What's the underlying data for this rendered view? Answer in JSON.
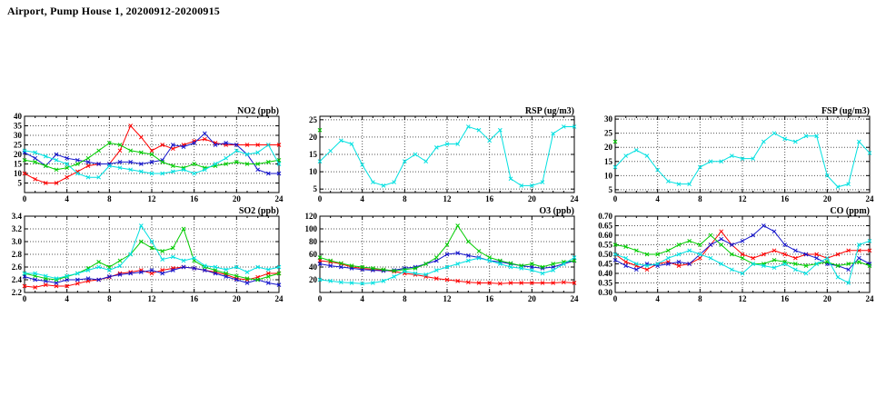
{
  "page_title": "Airport, Pump House 1, 20200912-20200915",
  "colors": {
    "red": "#ff0000",
    "blue": "#1414cc",
    "green": "#00cc00",
    "cyan": "#00e0e0"
  },
  "chart_data": [
    {
      "type": "line",
      "title": "NO2 (ppb)",
      "x_range": [
        0,
        24
      ],
      "x_ticks": [
        0,
        4,
        8,
        12,
        16,
        20,
        24
      ],
      "x_tick_labels": [
        "0",
        "4",
        "8",
        "12",
        "16",
        "20",
        "24"
      ],
      "y_range": [
        0,
        40
      ],
      "y_ticks": [
        5,
        10,
        15,
        20,
        25,
        30,
        35,
        40
      ],
      "y_tick_labels": [
        "5",
        "10",
        "15",
        "20",
        "25",
        "30",
        "35",
        "40"
      ],
      "grid": true,
      "legend": "none",
      "x": [
        0,
        1,
        2,
        3,
        4,
        5,
        6,
        7,
        8,
        9,
        10,
        11,
        12,
        13,
        14,
        15,
        16,
        17,
        18,
        19,
        20,
        21,
        22,
        23,
        24
      ],
      "series": [
        {
          "name": "red",
          "color": "#ff0000",
          "marker": "x",
          "y": [
            10,
            7,
            5,
            5,
            8,
            11,
            14,
            15,
            15,
            22,
            35,
            29,
            22,
            25,
            23,
            25,
            27,
            28,
            26,
            25,
            25,
            25,
            25,
            25,
            25
          ]
        },
        {
          "name": "blue",
          "color": "#1414cc",
          "marker": "x",
          "y": [
            21,
            18,
            14,
            20,
            18,
            17,
            16,
            15,
            15,
            16,
            16,
            15,
            16,
            17,
            25,
            24,
            26,
            31,
            25,
            26,
            25,
            20,
            12,
            10,
            10
          ]
        },
        {
          "name": "green",
          "color": "#00cc00",
          "marker": "x",
          "y": [
            17,
            16,
            14,
            12,
            13,
            15,
            18,
            22,
            26,
            25,
            22,
            21,
            20,
            16,
            14,
            13,
            15,
            13,
            14,
            15,
            16,
            15,
            15,
            16,
            17
          ]
        },
        {
          "name": "cyan",
          "color": "#00e0e0",
          "marker": "x",
          "y": [
            22,
            21,
            19,
            17,
            15,
            10,
            8,
            8,
            14,
            13,
            12,
            11,
            10,
            10,
            11,
            12,
            10,
            12,
            15,
            18,
            22,
            20,
            21,
            25,
            15
          ]
        }
      ]
    },
    {
      "type": "line",
      "title": "RSP (ug/m3)",
      "x_range": [
        0,
        24
      ],
      "x_ticks": [
        0,
        4,
        8,
        12,
        16,
        20,
        24
      ],
      "x_tick_labels": [
        "0",
        "4",
        "8",
        "12",
        "16",
        "20",
        "24"
      ],
      "y_range": [
        4,
        26
      ],
      "y_ticks": [
        5,
        10,
        15,
        20,
        25
      ],
      "y_tick_labels": [
        "5",
        "10",
        "15",
        "20",
        "25"
      ],
      "grid": true,
      "legend": "none",
      "x": [
        0,
        1,
        2,
        3,
        4,
        5,
        6,
        7,
        8,
        9,
        10,
        11,
        12,
        13,
        14,
        15,
        16,
        17,
        18,
        19,
        20,
        21,
        22,
        23,
        24
      ],
      "series": [
        {
          "name": "green",
          "color": "#00cc00",
          "marker": "x",
          "x": [
            0
          ],
          "y": [
            22
          ]
        },
        {
          "name": "cyan",
          "color": "#00e0e0",
          "marker": "x",
          "y": [
            13,
            16,
            19,
            18,
            12,
            7,
            6,
            7,
            13,
            15,
            13,
            17,
            18,
            18,
            23,
            22,
            19,
            22,
            8,
            6,
            6,
            7,
            21,
            23,
            23
          ]
        }
      ]
    },
    {
      "type": "line",
      "title": "FSP (ug/m3)",
      "x_range": [
        0,
        24
      ],
      "x_ticks": [
        0,
        4,
        8,
        12,
        16,
        20,
        24
      ],
      "x_tick_labels": [
        "0",
        "4",
        "8",
        "12",
        "16",
        "20",
        "24"
      ],
      "y_range": [
        4,
        31
      ],
      "y_ticks": [
        5,
        10,
        15,
        20,
        25,
        30
      ],
      "y_tick_labels": [
        "5",
        "10",
        "15",
        "20",
        "25",
        "30"
      ],
      "grid": true,
      "legend": "none",
      "x": [
        0,
        1,
        2,
        3,
        4,
        5,
        6,
        7,
        8,
        9,
        10,
        11,
        12,
        13,
        14,
        15,
        16,
        17,
        18,
        19,
        20,
        21,
        22,
        23,
        24
      ],
      "series": [
        {
          "name": "green",
          "color": "#00cc00",
          "marker": "x",
          "x": [
            0
          ],
          "y": [
            22
          ]
        },
        {
          "name": "cyan",
          "color": "#00e0e0",
          "marker": "x",
          "y": [
            13,
            17,
            19,
            17,
            12,
            8,
            7,
            7,
            13,
            15,
            15,
            17,
            16,
            16,
            22,
            25,
            23,
            22,
            24,
            24,
            10,
            6,
            7,
            22,
            18
          ]
        }
      ]
    },
    {
      "type": "line",
      "title": "SO2 (ppb)",
      "x_range": [
        0,
        24
      ],
      "x_ticks": [
        0,
        4,
        8,
        12,
        16,
        20,
        24
      ],
      "x_tick_labels": [
        "0",
        "4",
        "8",
        "12",
        "16",
        "20",
        "24"
      ],
      "y_range": [
        2.2,
        3.4
      ],
      "y_ticks": [
        2.2,
        2.4,
        2.6,
        2.8,
        3.0,
        3.2,
        3.4
      ],
      "y_tick_labels": [
        "2.2",
        "2.4",
        "2.6",
        "2.8",
        "3.0",
        "3.2",
        "3.4"
      ],
      "grid": true,
      "legend": "none",
      "x": [
        0,
        1,
        2,
        3,
        4,
        5,
        6,
        7,
        8,
        9,
        10,
        11,
        12,
        13,
        14,
        15,
        16,
        17,
        18,
        19,
        20,
        21,
        22,
        23,
        24
      ],
      "series": [
        {
          "name": "red",
          "color": "#ff0000",
          "marker": "x",
          "y": [
            2.3,
            2.28,
            2.32,
            2.3,
            2.3,
            2.34,
            2.38,
            2.4,
            2.44,
            2.5,
            2.52,
            2.55,
            2.5,
            2.55,
            2.58,
            2.6,
            2.58,
            2.55,
            2.52,
            2.48,
            2.42,
            2.4,
            2.44,
            2.5,
            2.5
          ]
        },
        {
          "name": "blue",
          "color": "#1414cc",
          "marker": "x",
          "y": [
            2.45,
            2.4,
            2.38,
            2.35,
            2.4,
            2.4,
            2.42,
            2.4,
            2.45,
            2.48,
            2.5,
            2.52,
            2.55,
            2.5,
            2.55,
            2.6,
            2.58,
            2.55,
            2.5,
            2.45,
            2.4,
            2.35,
            2.4,
            2.35,
            2.32
          ]
        },
        {
          "name": "green",
          "color": "#00cc00",
          "marker": "x",
          "y": [
            2.5,
            2.46,
            2.42,
            2.4,
            2.45,
            2.5,
            2.58,
            2.68,
            2.6,
            2.7,
            2.8,
            3.0,
            2.9,
            2.85,
            2.9,
            3.2,
            2.7,
            2.6,
            2.55,
            2.5,
            2.46,
            2.42,
            2.4,
            2.45,
            2.5
          ]
        },
        {
          "name": "cyan",
          "color": "#00e0e0",
          "marker": "x",
          "y": [
            2.5,
            2.5,
            2.46,
            2.42,
            2.46,
            2.5,
            2.55,
            2.6,
            2.55,
            2.62,
            2.8,
            3.25,
            3.0,
            2.72,
            2.76,
            2.7,
            2.74,
            2.62,
            2.6,
            2.56,
            2.6,
            2.52,
            2.6,
            2.56,
            2.6
          ]
        }
      ]
    },
    {
      "type": "line",
      "title": "O3 (ppb)",
      "x_range": [
        0,
        24
      ],
      "x_ticks": [
        0,
        4,
        8,
        12,
        16,
        20,
        24
      ],
      "x_tick_labels": [
        "0",
        "4",
        "8",
        "12",
        "16",
        "20",
        "24"
      ],
      "y_range": [
        0,
        120
      ],
      "y_ticks": [
        20,
        40,
        60,
        80,
        100,
        120
      ],
      "y_tick_labels": [
        "20",
        "40",
        "60",
        "80",
        "100",
        "120"
      ],
      "grid": true,
      "legend": "none",
      "x": [
        0,
        1,
        2,
        3,
        4,
        5,
        6,
        7,
        8,
        9,
        10,
        11,
        12,
        13,
        14,
        15,
        16,
        17,
        18,
        19,
        20,
        21,
        22,
        23,
        24
      ],
      "series": [
        {
          "name": "red",
          "color": "#ff0000",
          "marker": "x",
          "y": [
            50,
            48,
            45,
            40,
            38,
            36,
            35,
            33,
            30,
            28,
            25,
            22,
            20,
            18,
            16,
            15,
            15,
            14,
            15,
            15,
            15,
            15,
            15,
            16,
            15
          ]
        },
        {
          "name": "blue",
          "color": "#1414cc",
          "marker": "x",
          "y": [
            45,
            42,
            40,
            38,
            36,
            35,
            34,
            35,
            38,
            40,
            45,
            50,
            60,
            62,
            58,
            55,
            50,
            48,
            45,
            42,
            40,
            38,
            40,
            45,
            50
          ]
        },
        {
          "name": "green",
          "color": "#00cc00",
          "marker": "x",
          "y": [
            55,
            50,
            46,
            42,
            40,
            38,
            36,
            34,
            36,
            38,
            45,
            55,
            75,
            105,
            80,
            65,
            55,
            50,
            46,
            42,
            45,
            40,
            45,
            48,
            50
          ]
        },
        {
          "name": "cyan",
          "color": "#00e0e0",
          "marker": "x",
          "y": [
            20,
            18,
            16,
            15,
            14,
            15,
            18,
            25,
            33,
            30,
            28,
            35,
            40,
            45,
            50,
            54,
            50,
            45,
            40,
            38,
            35,
            30,
            35,
            45,
            55
          ]
        }
      ]
    },
    {
      "type": "line",
      "title": "CO (ppm)",
      "x_range": [
        0,
        24
      ],
      "x_ticks": [
        0,
        4,
        8,
        12,
        16,
        20,
        24
      ],
      "x_tick_labels": [
        "0",
        "4",
        "8",
        "12",
        "16",
        "20",
        "24"
      ],
      "y_range": [
        0.3,
        0.7
      ],
      "y_ticks": [
        0.3,
        0.35,
        0.4,
        0.45,
        0.5,
        0.55,
        0.6,
        0.65,
        0.7
      ],
      "y_tick_labels": [
        "0.30",
        "0.35",
        "0.40",
        "0.45",
        "0.50",
        "0.55",
        "0.60",
        "0.65",
        "0.70"
      ],
      "grid": true,
      "legend": "none",
      "x": [
        0,
        1,
        2,
        3,
        4,
        5,
        6,
        7,
        8,
        9,
        10,
        11,
        12,
        13,
        14,
        15,
        16,
        17,
        18,
        19,
        20,
        21,
        22,
        23,
        24
      ],
      "series": [
        {
          "name": "red",
          "color": "#ff0000",
          "marker": "x",
          "y": [
            0.5,
            0.46,
            0.44,
            0.42,
            0.45,
            0.46,
            0.44,
            0.45,
            0.48,
            0.55,
            0.62,
            0.55,
            0.5,
            0.48,
            0.5,
            0.52,
            0.5,
            0.48,
            0.5,
            0.5,
            0.48,
            0.5,
            0.52,
            0.52,
            0.52
          ]
        },
        {
          "name": "blue",
          "color": "#1414cc",
          "marker": "x",
          "y": [
            0.47,
            0.44,
            0.42,
            0.45,
            0.44,
            0.45,
            0.46,
            0.45,
            0.5,
            0.55,
            0.58,
            0.55,
            0.57,
            0.6,
            0.65,
            0.62,
            0.55,
            0.52,
            0.5,
            0.48,
            0.45,
            0.44,
            0.42,
            0.48,
            0.45
          ]
        },
        {
          "name": "green",
          "color": "#00cc00",
          "marker": "x",
          "y": [
            0.55,
            0.54,
            0.52,
            0.5,
            0.5,
            0.52,
            0.55,
            0.57,
            0.55,
            0.6,
            0.55,
            0.5,
            0.48,
            0.45,
            0.45,
            0.47,
            0.46,
            0.45,
            0.44,
            0.45,
            0.46,
            0.44,
            0.45,
            0.46,
            0.44
          ]
        },
        {
          "name": "cyan",
          "color": "#00e0e0",
          "marker": "x",
          "y": [
            0.5,
            0.48,
            0.45,
            0.44,
            0.45,
            0.48,
            0.5,
            0.52,
            0.5,
            0.48,
            0.45,
            0.42,
            0.4,
            0.45,
            0.44,
            0.43,
            0.45,
            0.42,
            0.4,
            0.45,
            0.48,
            0.38,
            0.35,
            0.55,
            0.57
          ]
        }
      ]
    }
  ]
}
